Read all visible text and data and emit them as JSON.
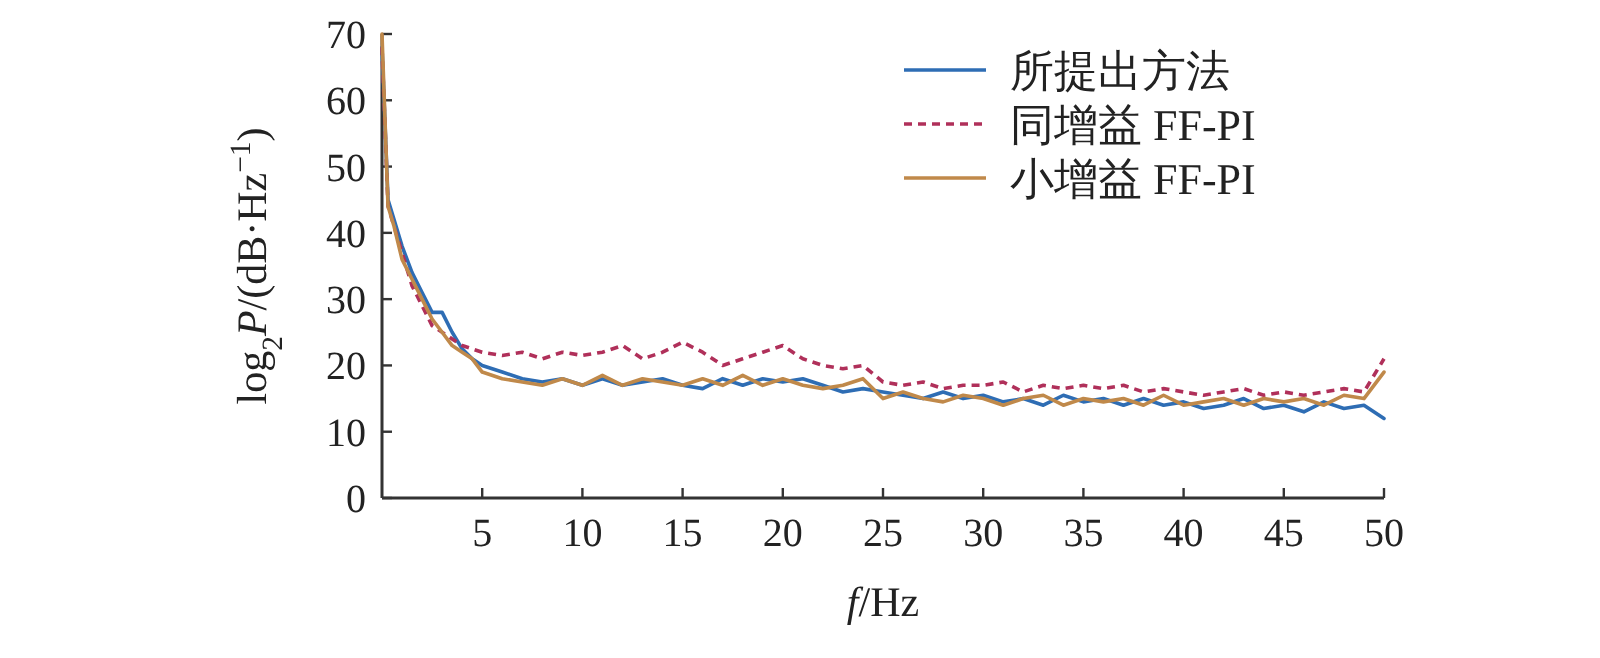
{
  "chart_data": {
    "type": "line",
    "xlabel": "*f*/Hz",
    "ylabel": "log$_{2}$*P*/(dB·Hz$^{−1}$)",
    "xlim": [
      0,
      50
    ],
    "xticks": [
      5,
      10,
      15,
      20,
      25,
      30,
      35,
      40,
      45,
      50
    ],
    "ylim": [
      0,
      70
    ],
    "yticks": [
      0,
      10,
      20,
      30,
      40,
      50,
      60,
      70
    ],
    "grid": false,
    "legend": "top right",
    "x": [
      0,
      0.3,
      0.6,
      1,
      1.5,
      2,
      2.5,
      3,
      3.5,
      4,
      4.5,
      5,
      6,
      7,
      8,
      9,
      10,
      11,
      12,
      13,
      14,
      15,
      16,
      17,
      18,
      19,
      20,
      21,
      22,
      23,
      24,
      25,
      26,
      27,
      28,
      29,
      30,
      31,
      32,
      33,
      34,
      35,
      36,
      37,
      38,
      39,
      40,
      41,
      42,
      43,
      44,
      45,
      46,
      47,
      48,
      49,
      50
    ],
    "series": [
      {
        "name": "所提出方法",
        "color": "#2e6db4",
        "line_style": "solid",
        "values": [
          68,
          45,
          42,
          38,
          34,
          31,
          28,
          28,
          25,
          22.5,
          21,
          20,
          19,
          18,
          17.5,
          18,
          17,
          18,
          17,
          17.5,
          18,
          17,
          16.5,
          18,
          17,
          18,
          17.5,
          18,
          17,
          16,
          16.5,
          16,
          15.5,
          15,
          16,
          15,
          15.5,
          14.5,
          15,
          14,
          15.5,
          14.5,
          15,
          14,
          15,
          14,
          14.5,
          13.5,
          14,
          15,
          13.5,
          14,
          13,
          14.5,
          13.5,
          14,
          12
        ]
      },
      {
        "name": "同增益 FF-PI",
        "color": "#b0305a",
        "line_style": "dashed",
        "values": [
          68,
          44,
          41,
          37,
          32,
          29,
          26,
          25,
          24,
          23,
          22.5,
          22,
          21.5,
          22,
          21,
          22,
          21.5,
          22,
          23,
          21,
          22,
          23.5,
          22,
          20,
          21,
          22,
          23,
          21,
          20,
          19.5,
          20,
          17.5,
          17,
          17.5,
          16.5,
          17,
          17,
          17.5,
          16,
          17,
          16.5,
          17,
          16.5,
          17,
          16,
          16.5,
          16,
          15.5,
          16,
          16.5,
          15.5,
          16,
          15.5,
          16,
          16.5,
          16,
          21
        ]
      },
      {
        "name": "小增益 FF-PI",
        "color": "#c0894a",
        "line_style": "solid",
        "values": [
          70,
          44,
          41,
          36,
          33,
          30,
          27,
          25,
          23,
          22,
          21,
          19,
          18,
          17.5,
          17,
          18,
          17,
          18.5,
          17,
          18,
          17.5,
          17,
          18,
          17,
          18.5,
          17,
          18,
          17,
          16.5,
          17,
          18,
          15,
          16,
          15,
          14.5,
          15.5,
          15,
          14,
          15,
          15.5,
          14,
          15,
          14.5,
          15,
          14,
          15.5,
          14,
          14.5,
          15,
          14,
          15,
          14.5,
          15,
          14,
          15.5,
          15,
          19
        ]
      }
    ]
  }
}
